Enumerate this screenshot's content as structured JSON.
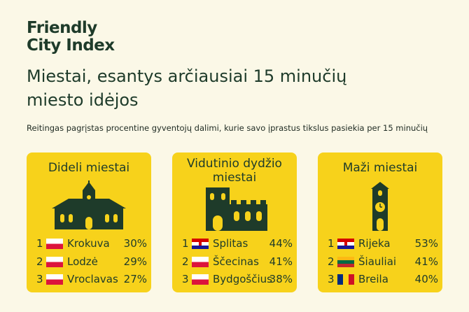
{
  "logo": [
    "Friendly",
    "City Index"
  ],
  "heading": "Miestai, esantys arčiausiai 15 minučių miesto idėjos",
  "subtitle": "Reitingas pagrįstas procentine gyventojų dalimi, kurie savo įprastus tikslus pasiekia per 15 minučių",
  "cards": [
    {
      "title": "Dideli miestai",
      "rows": [
        {
          "rank": "1",
          "city": "Krokuva",
          "share": "30%"
        },
        {
          "rank": "2",
          "city": "Lodzė",
          "share": "29%"
        },
        {
          "rank": "3",
          "city": "Vroclavas",
          "share": "27%"
        }
      ]
    },
    {
      "title": "Vidutinio dydžio miestai",
      "rows": [
        {
          "rank": "1",
          "city": "Splitas",
          "share": "44%"
        },
        {
          "rank": "2",
          "city": "Ščecinas",
          "share": "41%"
        },
        {
          "rank": "3",
          "city": "Bydgoščius",
          "share": "38%"
        }
      ]
    },
    {
      "title": "Maži miestai",
      "rows": [
        {
          "rank": "1",
          "city": "Rijeka",
          "share": "53%"
        },
        {
          "rank": "2",
          "city": "Šiauliai",
          "share": "41%"
        },
        {
          "rank": "3",
          "city": "Breila",
          "share": "40%"
        }
      ]
    }
  ]
}
